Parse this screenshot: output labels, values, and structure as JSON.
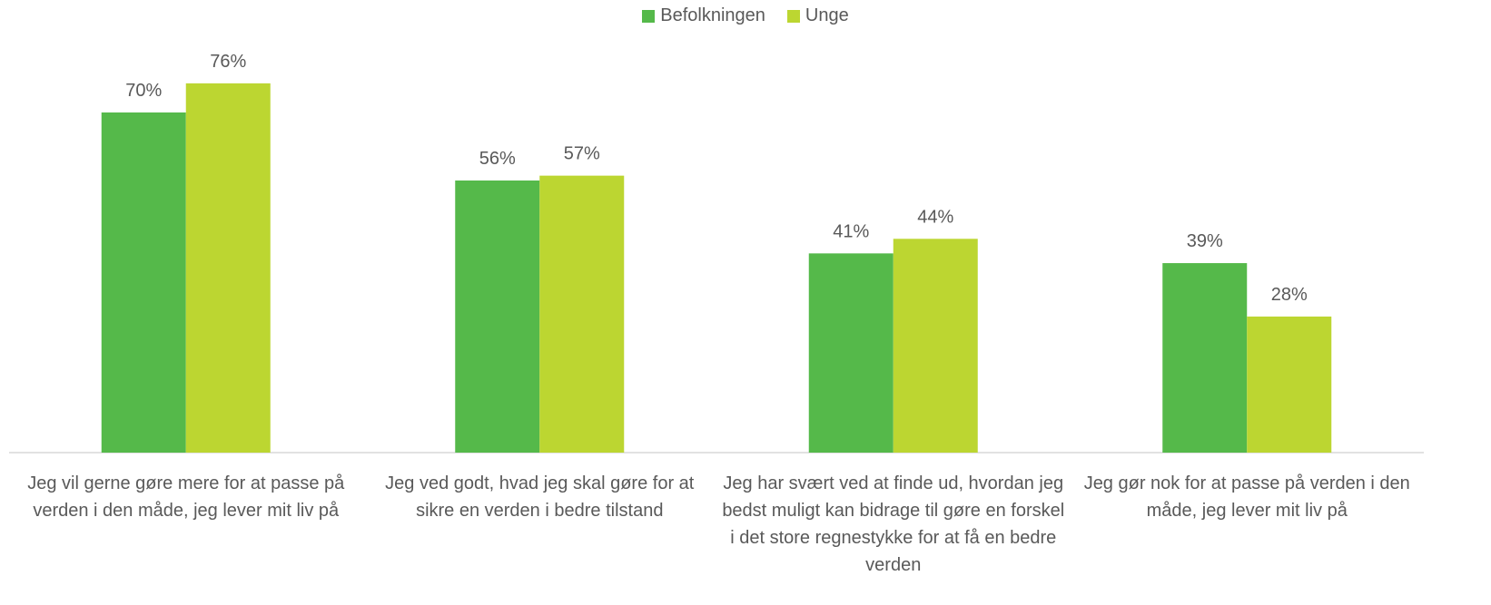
{
  "chart_data": {
    "type": "bar",
    "categories": [
      "Jeg vil gerne gøre mere for at passe på verden i den måde, jeg lever mit liv på",
      "Jeg ved godt, hvad jeg skal gøre for at sikre en verden i bedre tilstand",
      "Jeg har svært ved at finde ud, hvordan jeg bedst muligt kan bidrage til gøre en forskel i det store regnestykke for at få en bedre verden",
      "Jeg gør nok for at passe på verden i den måde, jeg lever mit liv på"
    ],
    "series": [
      {
        "name": "Befolkningen",
        "color": "#55b94a",
        "values": [
          70,
          56,
          41,
          39
        ],
        "value_labels": [
          "70%",
          "56%",
          "41%",
          "39%"
        ]
      },
      {
        "name": "Unge",
        "color": "#bcd631",
        "values": [
          76,
          57,
          44,
          28
        ],
        "value_labels": [
          "76%",
          "57%",
          "44%",
          "28%"
        ]
      }
    ],
    "legend": "top"
  }
}
